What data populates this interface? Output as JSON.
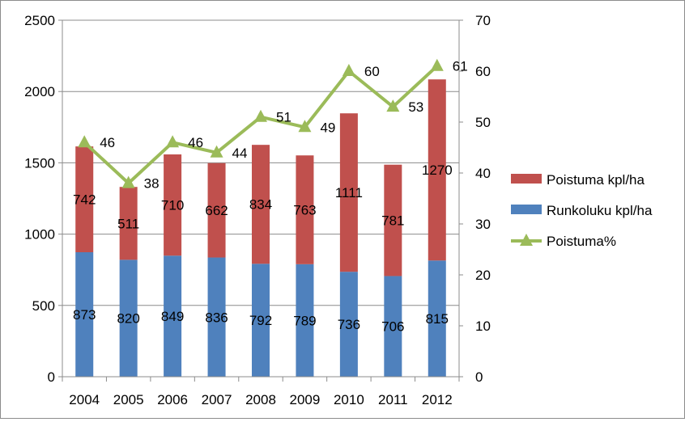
{
  "chart_data": {
    "type": "bar",
    "stacked": true,
    "categories": [
      "2004",
      "2005",
      "2006",
      "2007",
      "2008",
      "2009",
      "2010",
      "2011",
      "2012"
    ],
    "series": [
      {
        "name": "Runkoluku kpl/ha",
        "kind": "bar",
        "axis": "left",
        "color": "#4f81bd",
        "values": [
          873,
          820,
          849,
          836,
          792,
          789,
          736,
          706,
          815
        ]
      },
      {
        "name": "Poistuma kpl/ha",
        "kind": "bar",
        "axis": "left",
        "color": "#c0504d",
        "values": [
          742,
          511,
          710,
          662,
          834,
          763,
          1111,
          781,
          1270
        ]
      },
      {
        "name": "Poistuma%",
        "kind": "line",
        "axis": "right",
        "color": "#9bbb59",
        "marker": "triangle",
        "values": [
          46,
          38,
          46,
          44,
          51,
          49,
          60,
          53,
          61
        ]
      }
    ],
    "y_left": {
      "min": 0,
      "max": 2500,
      "step": 500,
      "ticks": [
        "0",
        "500",
        "1000",
        "1500",
        "2000",
        "2500"
      ]
    },
    "y_right": {
      "min": 0,
      "max": 70,
      "step": 10,
      "ticks": [
        "0",
        "10",
        "20",
        "30",
        "40",
        "50",
        "60",
        "70"
      ]
    },
    "grid": true,
    "legend_position": "right",
    "legend_order": [
      "Poistuma kpl/ha",
      "Runkoluku kpl/ha",
      "Poistuma%"
    ]
  }
}
